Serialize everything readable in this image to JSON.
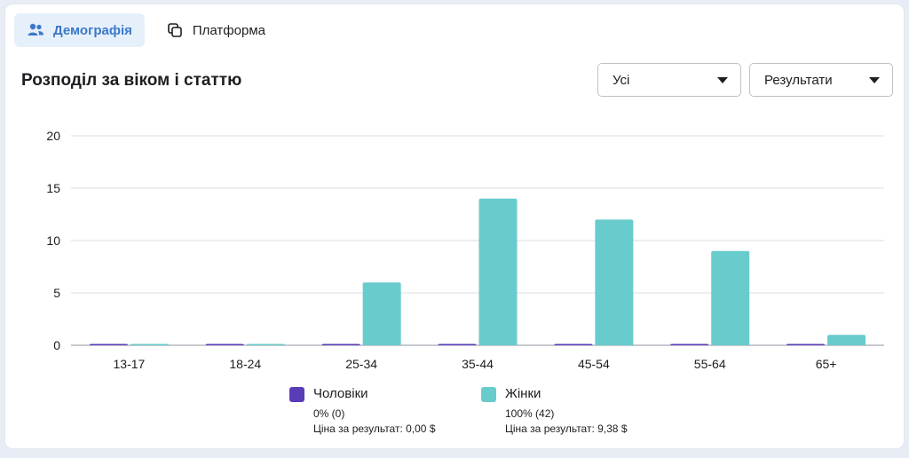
{
  "tabs": [
    {
      "label": "Демографія",
      "icon": "people-icon",
      "active": true
    },
    {
      "label": "Платформа",
      "icon": "overlap-squares-icon",
      "active": false
    }
  ],
  "section_title": "Розподіл за віком і статтю",
  "filters": {
    "audience": "Усі",
    "metric": "Результати"
  },
  "colors": {
    "men": "#5a3bb8",
    "women": "#68cbcc",
    "accent": "#3b79c9"
  },
  "legend": {
    "men": {
      "name": "Чоловіки",
      "share": "0% (0)",
      "cost": "Ціна за результат: 0,00 $"
    },
    "women": {
      "name": "Жінки",
      "share": "100% (42)",
      "cost": "Ціна за результат: 9,38 $"
    }
  },
  "chart_data": {
    "type": "bar",
    "categories": [
      "13-17",
      "18-24",
      "25-34",
      "35-44",
      "45-54",
      "55-64",
      "65+"
    ],
    "series": [
      {
        "name": "Чоловіки",
        "values": [
          0,
          0,
          0,
          0,
          0,
          0,
          0
        ]
      },
      {
        "name": "Жінки",
        "values": [
          0,
          0,
          6,
          14,
          12,
          9,
          1
        ]
      }
    ],
    "yticks": [
      0,
      5,
      10,
      15,
      20
    ],
    "ylim": [
      0,
      20
    ],
    "grid": true,
    "legend_position": "bottom"
  }
}
